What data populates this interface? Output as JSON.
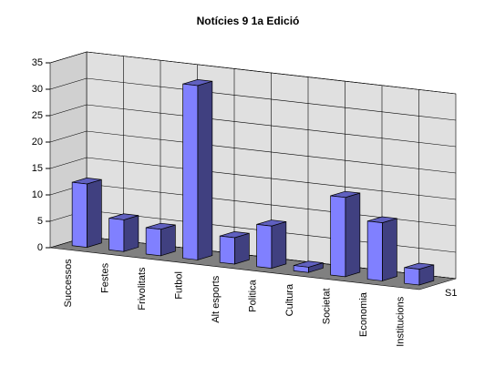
{
  "chart_data": {
    "type": "bar3d",
    "title": "Notícies 9  1a Edició",
    "categories": [
      "Successos",
      "Festes",
      "Frivolitats",
      "Futbol",
      "Alt esports",
      "Politica",
      "Cultura",
      "Societat",
      "Economia",
      "Institucions"
    ],
    "series": [
      {
        "name": "S1",
        "color": "#8080ff",
        "values": [
          12,
          6,
          5,
          33,
          5,
          8,
          1,
          15,
          11,
          3
        ]
      }
    ],
    "ylim": [
      0,
      35
    ],
    "yticks": [
      0,
      5,
      10,
      15,
      20,
      25,
      30,
      35
    ],
    "grid": true
  }
}
